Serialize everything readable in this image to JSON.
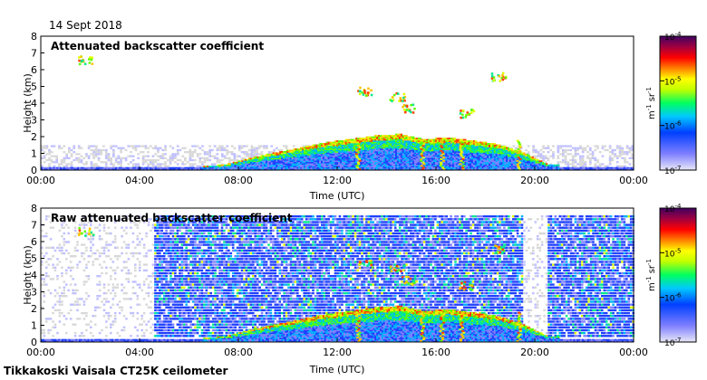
{
  "header": {
    "date": "14 Sept 2018"
  },
  "footer": {
    "instrument": "Tikkakoski Vaisala CT25K ceilometer"
  },
  "chart_data": [
    {
      "type": "heatmap",
      "title": "Attenuated backscatter coefficient",
      "xlabel": "Time (UTC)",
      "ylabel": "Height (km)",
      "x_ticks": [
        "00:00",
        "04:00",
        "08:00",
        "12:00",
        "16:00",
        "20:00",
        "00:00"
      ],
      "y_ticks": [
        "0",
        "1",
        "2",
        "3",
        "4",
        "5",
        "6",
        "7",
        "8"
      ],
      "xlim_hours": [
        0,
        24
      ],
      "ylim_km": [
        0,
        8
      ],
      "colorbar": {
        "scale": "log",
        "min_exp": -7,
        "max_exp": -4,
        "tick_exps": [
          "-7",
          "-6",
          "-5",
          "-4"
        ],
        "unit_m": "m",
        "unit_m_exp": "-1",
        "unit_sr": "sr",
        "unit_sr_exp": "-1"
      },
      "features": {
        "boundary_layer_top_km": [
          [
            6.5,
            0.15
          ],
          [
            7.5,
            0.3
          ],
          [
            8.5,
            0.7
          ],
          [
            9.5,
            1.0
          ],
          [
            10.5,
            1.3
          ],
          [
            11.5,
            1.6
          ],
          [
            12.5,
            1.8
          ],
          [
            13.5,
            2.0
          ],
          [
            14.5,
            2.1
          ],
          [
            15.5,
            1.8
          ],
          [
            16.5,
            1.9
          ],
          [
            18.5,
            1.5
          ],
          [
            19.5,
            1.0
          ],
          [
            20.5,
            0.3
          ]
        ],
        "cloud_layers": [
          [
            14.4,
            4.3
          ],
          [
            14.9,
            3.6
          ],
          [
            17.2,
            3.3
          ],
          [
            18.5,
            5.5
          ],
          [
            1.8,
            6.5
          ],
          [
            13.1,
            4.6
          ]
        ],
        "precip_columns_hours": [
          12.8,
          15.4,
          16.2,
          17.0,
          19.3
        ]
      }
    },
    {
      "type": "heatmap",
      "title": "Raw attenuated backscatter coefficient",
      "xlabel": "Time (UTC)",
      "ylabel": "Height (km)",
      "x_ticks": [
        "00:00",
        "04:00",
        "08:00",
        "12:00",
        "16:00",
        "20:00",
        "00:00"
      ],
      "y_ticks": [
        "0",
        "1",
        "2",
        "3",
        "4",
        "5",
        "6",
        "7",
        "8"
      ],
      "xlim_hours": [
        0,
        24
      ],
      "ylim_km": [
        0,
        8
      ],
      "colorbar": {
        "scale": "log",
        "min_exp": -7,
        "max_exp": -4,
        "tick_exps": [
          "-7",
          "-6",
          "-5",
          "-4"
        ],
        "unit_m": "m",
        "unit_m_exp": "-1",
        "unit_sr": "sr",
        "unit_sr_exp": "-1"
      },
      "features": {
        "noise_region_hours": [
          4.5,
          24
        ],
        "low_noise_gap_hours": [
          19.5,
          20.5
        ],
        "boundary_layer_top_km": [
          [
            6.5,
            0.15
          ],
          [
            7.5,
            0.3
          ],
          [
            8.5,
            0.7
          ],
          [
            9.5,
            1.0
          ],
          [
            10.5,
            1.3
          ],
          [
            11.5,
            1.6
          ],
          [
            12.5,
            1.8
          ],
          [
            13.5,
            2.0
          ],
          [
            14.5,
            2.1
          ],
          [
            15.5,
            1.8
          ],
          [
            16.5,
            1.9
          ],
          [
            18.5,
            1.5
          ],
          [
            19.5,
            1.0
          ],
          [
            20.5,
            0.3
          ]
        ]
      }
    }
  ]
}
